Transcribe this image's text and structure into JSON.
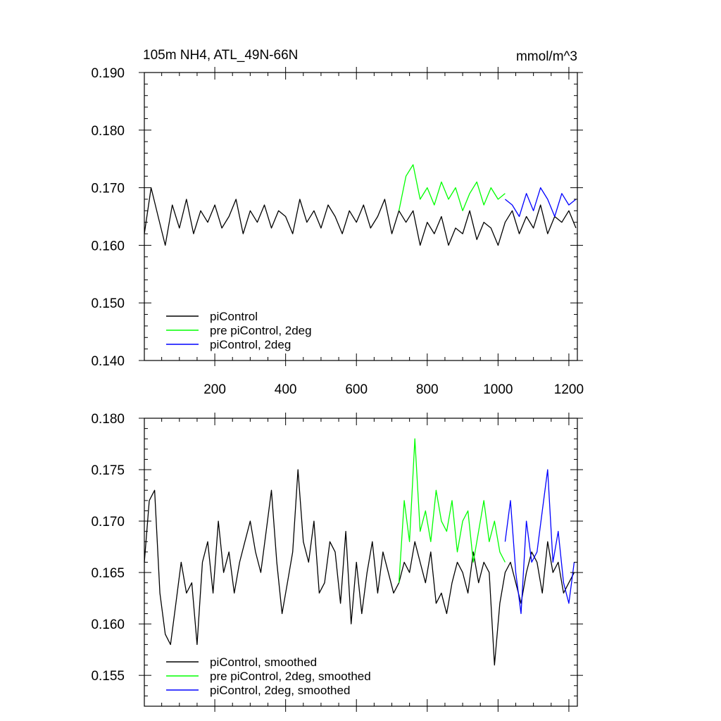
{
  "colors": {
    "black": "#000000",
    "green": "#00ff00",
    "blue": "#0000ff"
  },
  "chart_data": [
    {
      "type": "line",
      "title": "105m NH4, ATL_49N-66N",
      "units": "mmol/m^3",
      "xlim": [
        1,
        1224
      ],
      "ylim": [
        0.14,
        0.19
      ],
      "x_ticks": [
        200,
        400,
        600,
        800,
        1000,
        1200
      ],
      "x_tick_labels": [
        "200",
        "400",
        "600",
        "800",
        "1000",
        "1200"
      ],
      "y_ticks": [
        0.14,
        0.15,
        0.16,
        0.17,
        0.18,
        0.19
      ],
      "y_tick_labels": [
        "0.140",
        "0.150",
        "0.160",
        "0.170",
        "0.180",
        "0.190"
      ],
      "legend_position": "bottom-left",
      "series": [
        {
          "name": "piControl",
          "color": "#000000",
          "x": [
            1,
            20,
            40,
            60,
            80,
            100,
            120,
            140,
            160,
            180,
            200,
            220,
            240,
            260,
            280,
            300,
            320,
            340,
            360,
            380,
            400,
            420,
            440,
            460,
            480,
            500,
            520,
            540,
            560,
            580,
            600,
            620,
            640,
            660,
            680,
            700,
            720,
            740,
            760,
            780,
            800,
            820,
            840,
            860,
            880,
            900,
            920,
            940,
            960,
            980,
            1000,
            1020,
            1040,
            1060,
            1080,
            1100,
            1120,
            1140,
            1160,
            1180,
            1200,
            1220
          ],
          "y": [
            0.162,
            0.17,
            0.165,
            0.16,
            0.167,
            0.163,
            0.168,
            0.162,
            0.166,
            0.164,
            0.167,
            0.163,
            0.165,
            0.168,
            0.162,
            0.166,
            0.164,
            0.167,
            0.163,
            0.166,
            0.165,
            0.162,
            0.168,
            0.164,
            0.166,
            0.163,
            0.167,
            0.165,
            0.162,
            0.166,
            0.164,
            0.167,
            0.163,
            0.165,
            0.168,
            0.162,
            0.166,
            0.164,
            0.166,
            0.16,
            0.164,
            0.162,
            0.165,
            0.16,
            0.163,
            0.162,
            0.166,
            0.161,
            0.164,
            0.163,
            0.16,
            0.164,
            0.166,
            0.162,
            0.165,
            0.163,
            0.167,
            0.162,
            0.165,
            0.164,
            0.166,
            0.163
          ]
        },
        {
          "name": "pre piControl, 2deg",
          "color": "#00ff00",
          "x": [
            720,
            740,
            760,
            780,
            800,
            820,
            840,
            860,
            880,
            900,
            920,
            940,
            960,
            980,
            1000,
            1020
          ],
          "y": [
            0.166,
            0.172,
            0.174,
            0.168,
            0.17,
            0.167,
            0.171,
            0.168,
            0.17,
            0.166,
            0.169,
            0.171,
            0.167,
            0.17,
            0.168,
            0.169
          ]
        },
        {
          "name": "piControl, 2deg",
          "color": "#0000ff",
          "x": [
            1020,
            1040,
            1060,
            1080,
            1100,
            1120,
            1140,
            1160,
            1180,
            1200,
            1220
          ],
          "y": [
            0.168,
            0.167,
            0.165,
            0.169,
            0.166,
            0.17,
            0.168,
            0.165,
            0.169,
            0.167,
            0.168
          ]
        }
      ]
    },
    {
      "type": "line",
      "xlim": [
        1,
        1224
      ],
      "ylim": [
        0.152,
        0.18
      ],
      "y_ticks": [
        0.155,
        0.16,
        0.165,
        0.17,
        0.175,
        0.18
      ],
      "y_tick_labels": [
        "0.155",
        "0.160",
        "0.165",
        "0.170",
        "0.175",
        "0.180"
      ],
      "x_ticks": [
        200,
        400,
        600,
        800,
        1000,
        1200
      ],
      "legend_position": "bottom-left",
      "series": [
        {
          "name": "piControl, smoothed",
          "color": "#000000",
          "x": [
            1,
            15,
            30,
            45,
            60,
            75,
            90,
            105,
            120,
            135,
            150,
            165,
            180,
            195,
            210,
            225,
            240,
            255,
            270,
            285,
            300,
            315,
            330,
            345,
            360,
            375,
            390,
            405,
            420,
            435,
            450,
            465,
            480,
            495,
            510,
            525,
            540,
            555,
            570,
            585,
            600,
            615,
            630,
            645,
            660,
            675,
            690,
            705,
            720,
            735,
            750,
            765,
            780,
            795,
            810,
            825,
            840,
            855,
            870,
            885,
            900,
            915,
            930,
            945,
            960,
            975,
            990,
            1005,
            1020,
            1035,
            1050,
            1065,
            1080,
            1095,
            1110,
            1125,
            1140,
            1155,
            1170,
            1185,
            1200,
            1215
          ],
          "y": [
            0.166,
            0.172,
            0.173,
            0.163,
            0.159,
            0.158,
            0.162,
            0.166,
            0.163,
            0.164,
            0.158,
            0.166,
            0.168,
            0.163,
            0.17,
            0.165,
            0.167,
            0.163,
            0.166,
            0.168,
            0.17,
            0.167,
            0.165,
            0.169,
            0.173,
            0.166,
            0.161,
            0.164,
            0.167,
            0.175,
            0.168,
            0.166,
            0.17,
            0.163,
            0.164,
            0.168,
            0.167,
            0.162,
            0.169,
            0.16,
            0.166,
            0.161,
            0.165,
            0.168,
            0.163,
            0.167,
            0.165,
            0.163,
            0.164,
            0.166,
            0.165,
            0.168,
            0.166,
            0.164,
            0.167,
            0.162,
            0.163,
            0.161,
            0.164,
            0.166,
            0.165,
            0.163,
            0.167,
            0.164,
            0.166,
            0.165,
            0.156,
            0.162,
            0.165,
            0.166,
            0.164,
            0.162,
            0.165,
            0.167,
            0.166,
            0.163,
            0.168,
            0.165,
            0.166,
            0.163,
            0.164,
            0.165
          ]
        },
        {
          "name": "pre piControl, 2deg, smoothed",
          "color": "#00ff00",
          "x": [
            720,
            735,
            750,
            765,
            780,
            795,
            810,
            825,
            840,
            855,
            870,
            885,
            900,
            915,
            930,
            945,
            960,
            975,
            990,
            1005,
            1020
          ],
          "y": [
            0.164,
            0.172,
            0.168,
            0.178,
            0.169,
            0.171,
            0.168,
            0.173,
            0.17,
            0.169,
            0.172,
            0.167,
            0.17,
            0.171,
            0.166,
            0.169,
            0.172,
            0.168,
            0.17,
            0.167,
            0.166
          ]
        },
        {
          "name": "piControl, 2deg, smoothed",
          "color": "#0000ff",
          "x": [
            1020,
            1035,
            1050,
            1065,
            1080,
            1095,
            1110,
            1125,
            1140,
            1155,
            1170,
            1185,
            1200,
            1215
          ],
          "y": [
            0.168,
            0.172,
            0.165,
            0.161,
            0.17,
            0.166,
            0.167,
            0.171,
            0.175,
            0.166,
            0.169,
            0.164,
            0.162,
            0.166
          ]
        }
      ]
    }
  ]
}
